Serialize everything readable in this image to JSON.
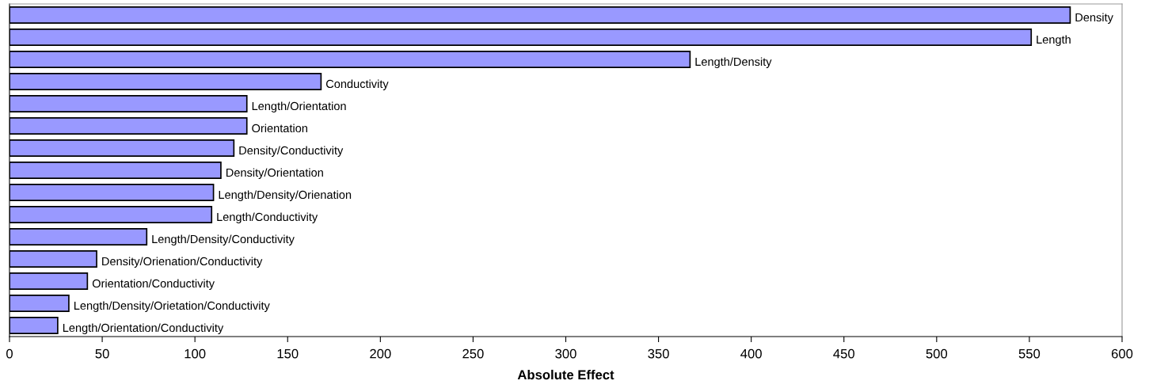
{
  "chart_data": {
    "type": "bar",
    "orientation": "horizontal",
    "xlabel": "Absolute Effect",
    "categories": [
      "Density",
      "Length",
      "Length/Density",
      "Conductivity",
      "Length/Orientation",
      "Orientation",
      "Density/Conductivity",
      "Density/Orientation",
      "Length/Density/Orienation",
      "Length/Conductivity",
      "Length/Density/Conductivity",
      "Density/Orienation/Conductivity",
      "Orientation/Conductivity",
      "Length/Density/Orietation/Conductivity",
      "Length/Orientation/Conductivity"
    ],
    "values": [
      572,
      551,
      367,
      168,
      128,
      128,
      121,
      114,
      110,
      109,
      74,
      47,
      42,
      32,
      26
    ],
    "color": "#9999ff",
    "xlim": [
      0,
      600
    ],
    "xticks": [
      0,
      50,
      100,
      150,
      200,
      250,
      300,
      350,
      400,
      450,
      500,
      550,
      600
    ],
    "tick_labels": "x",
    "grid": false,
    "legend": false
  }
}
